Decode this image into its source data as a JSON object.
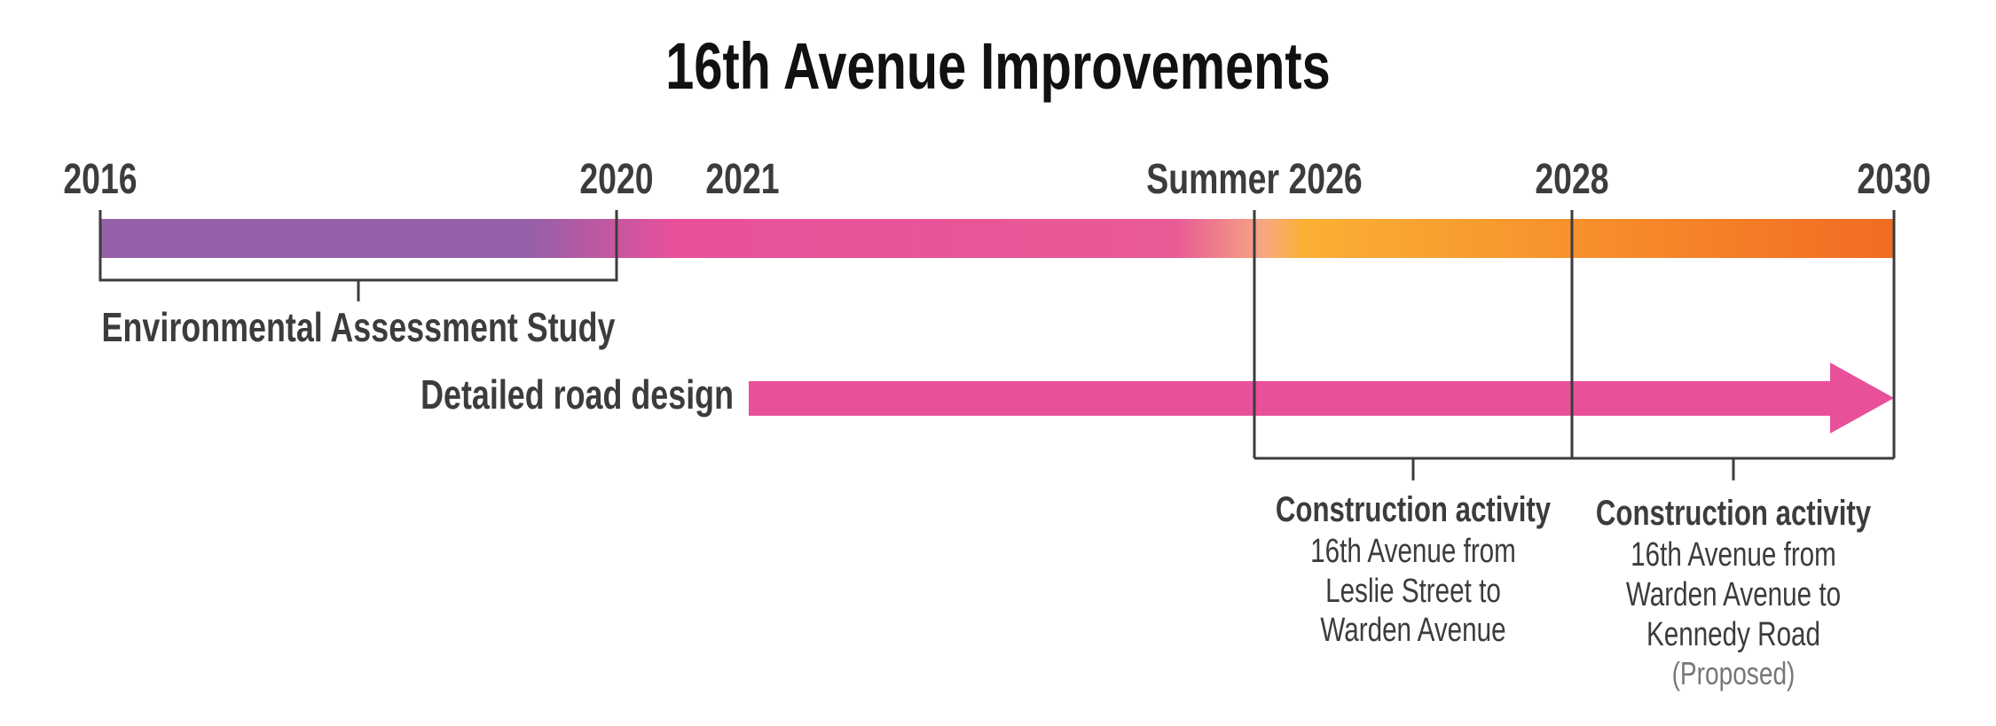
{
  "title": "16th Avenue Improvements",
  "timeline": {
    "milestones": [
      "2016",
      "2020",
      "2021",
      "Summer 2026",
      "2028",
      "2030"
    ]
  },
  "phases": [
    {
      "label": "Environmental Assessment Study"
    },
    {
      "label": "Detailed road design"
    },
    {
      "title": "Construction activity",
      "lines": [
        "16th Avenue from",
        "Leslie Street to",
        "Warden Avenue"
      ]
    },
    {
      "title": "Construction activity",
      "lines": [
        "16th Avenue from",
        "Warden Avenue to",
        "Kennedy Road"
      ],
      "note": "(Proposed)"
    }
  ]
}
